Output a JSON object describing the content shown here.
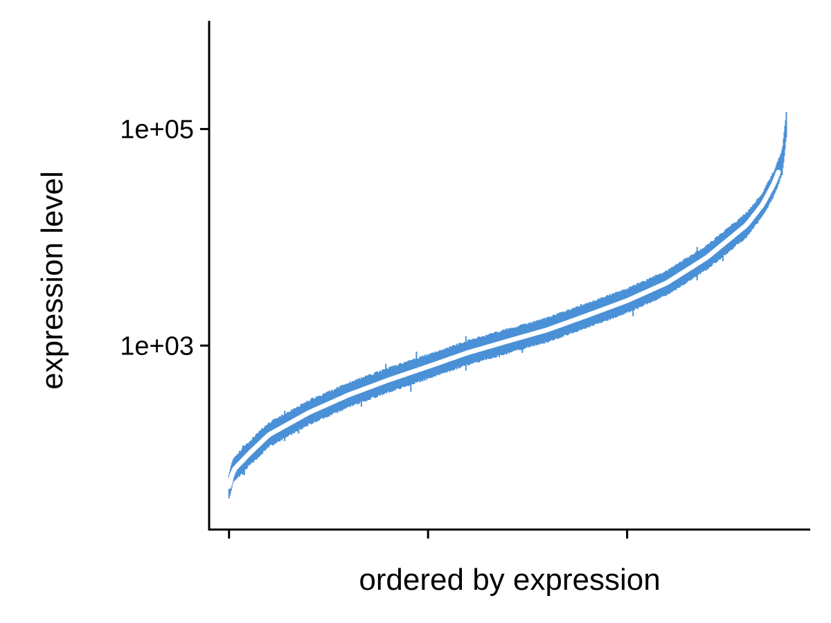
{
  "chart_data": {
    "type": "line",
    "title": "",
    "xlabel": "ordered by expression",
    "ylabel": "expression level",
    "y_scale": "log10",
    "ylim": [
      20,
      1000000
    ],
    "xlim": [
      -0.05,
      1.46
    ],
    "x_ticks": [
      0,
      0.5,
      1.0
    ],
    "x_tick_labels": [
      "",
      "",
      ""
    ],
    "y_ticks": [
      1000,
      100000
    ],
    "y_tick_labels": [
      "1e+03",
      "1e+05"
    ],
    "grid": false,
    "legend": "none",
    "band_color": "#4a90d6",
    "median_color": "#ffffff",
    "series": [
      {
        "x": [
          0,
          0.01,
          0.05,
          0.1,
          0.2,
          0.3,
          0.4,
          0.5,
          0.6,
          0.7,
          0.8,
          0.9,
          1.0,
          1.1,
          1.2,
          1.3,
          1.34,
          1.37,
          1.39,
          1.4
        ],
        "y": [
          50,
          70,
          100,
          150,
          240,
          350,
          480,
          640,
          860,
          1100,
          1400,
          1900,
          2600,
          3800,
          6500,
          13000,
          20000,
          32000,
          50000,
          110000
        ]
      }
    ]
  }
}
